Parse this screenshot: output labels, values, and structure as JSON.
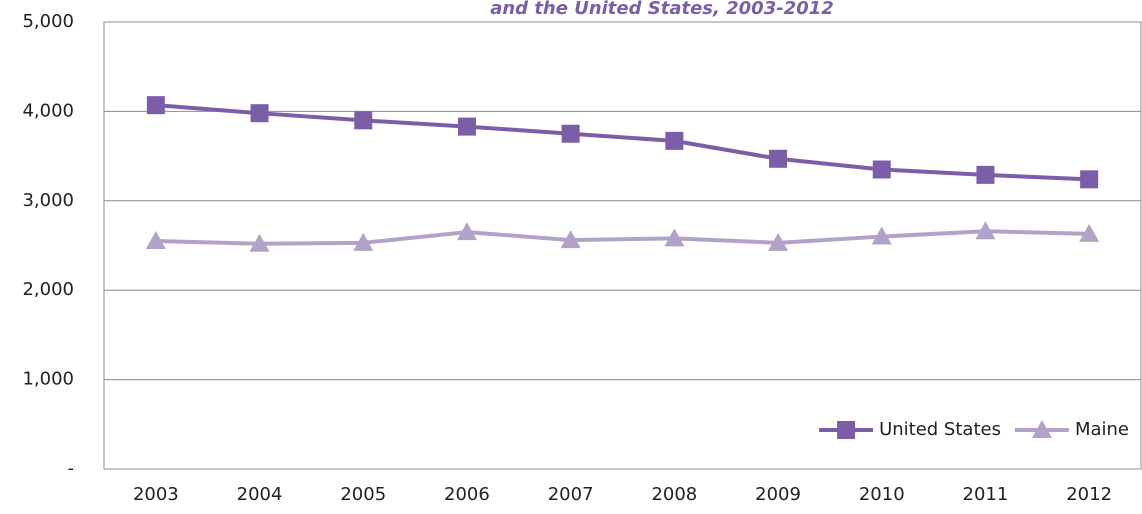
{
  "chart_data": {
    "type": "line",
    "title": "and the United States, 2003-2012",
    "categories": [
      "2003",
      "2004",
      "2005",
      "2006",
      "2007",
      "2008",
      "2009",
      "2010",
      "2011",
      "2012"
    ],
    "series": [
      {
        "name": "United States",
        "color": "#7b5ea7",
        "marker": "square",
        "values": [
          4070,
          3980,
          3900,
          3830,
          3750,
          3670,
          3470,
          3350,
          3290,
          3240
        ]
      },
      {
        "name": "Maine",
        "color": "#b3a2c7",
        "marker": "triangle",
        "values": [
          2550,
          2520,
          2530,
          2650,
          2560,
          2580,
          2530,
          2600,
          2660,
          2630
        ]
      }
    ],
    "ylim": [
      0,
      5000
    ],
    "yticks": [
      {
        "value": 0,
        "label": "-"
      },
      {
        "value": 1000,
        "label": "1,000"
      },
      {
        "value": 2000,
        "label": "2,000"
      },
      {
        "value": 3000,
        "label": "3,000"
      },
      {
        "value": 4000,
        "label": "4,000"
      },
      {
        "value": 5000,
        "label": "5,000"
      }
    ],
    "grid": true,
    "legend": "lower right"
  }
}
